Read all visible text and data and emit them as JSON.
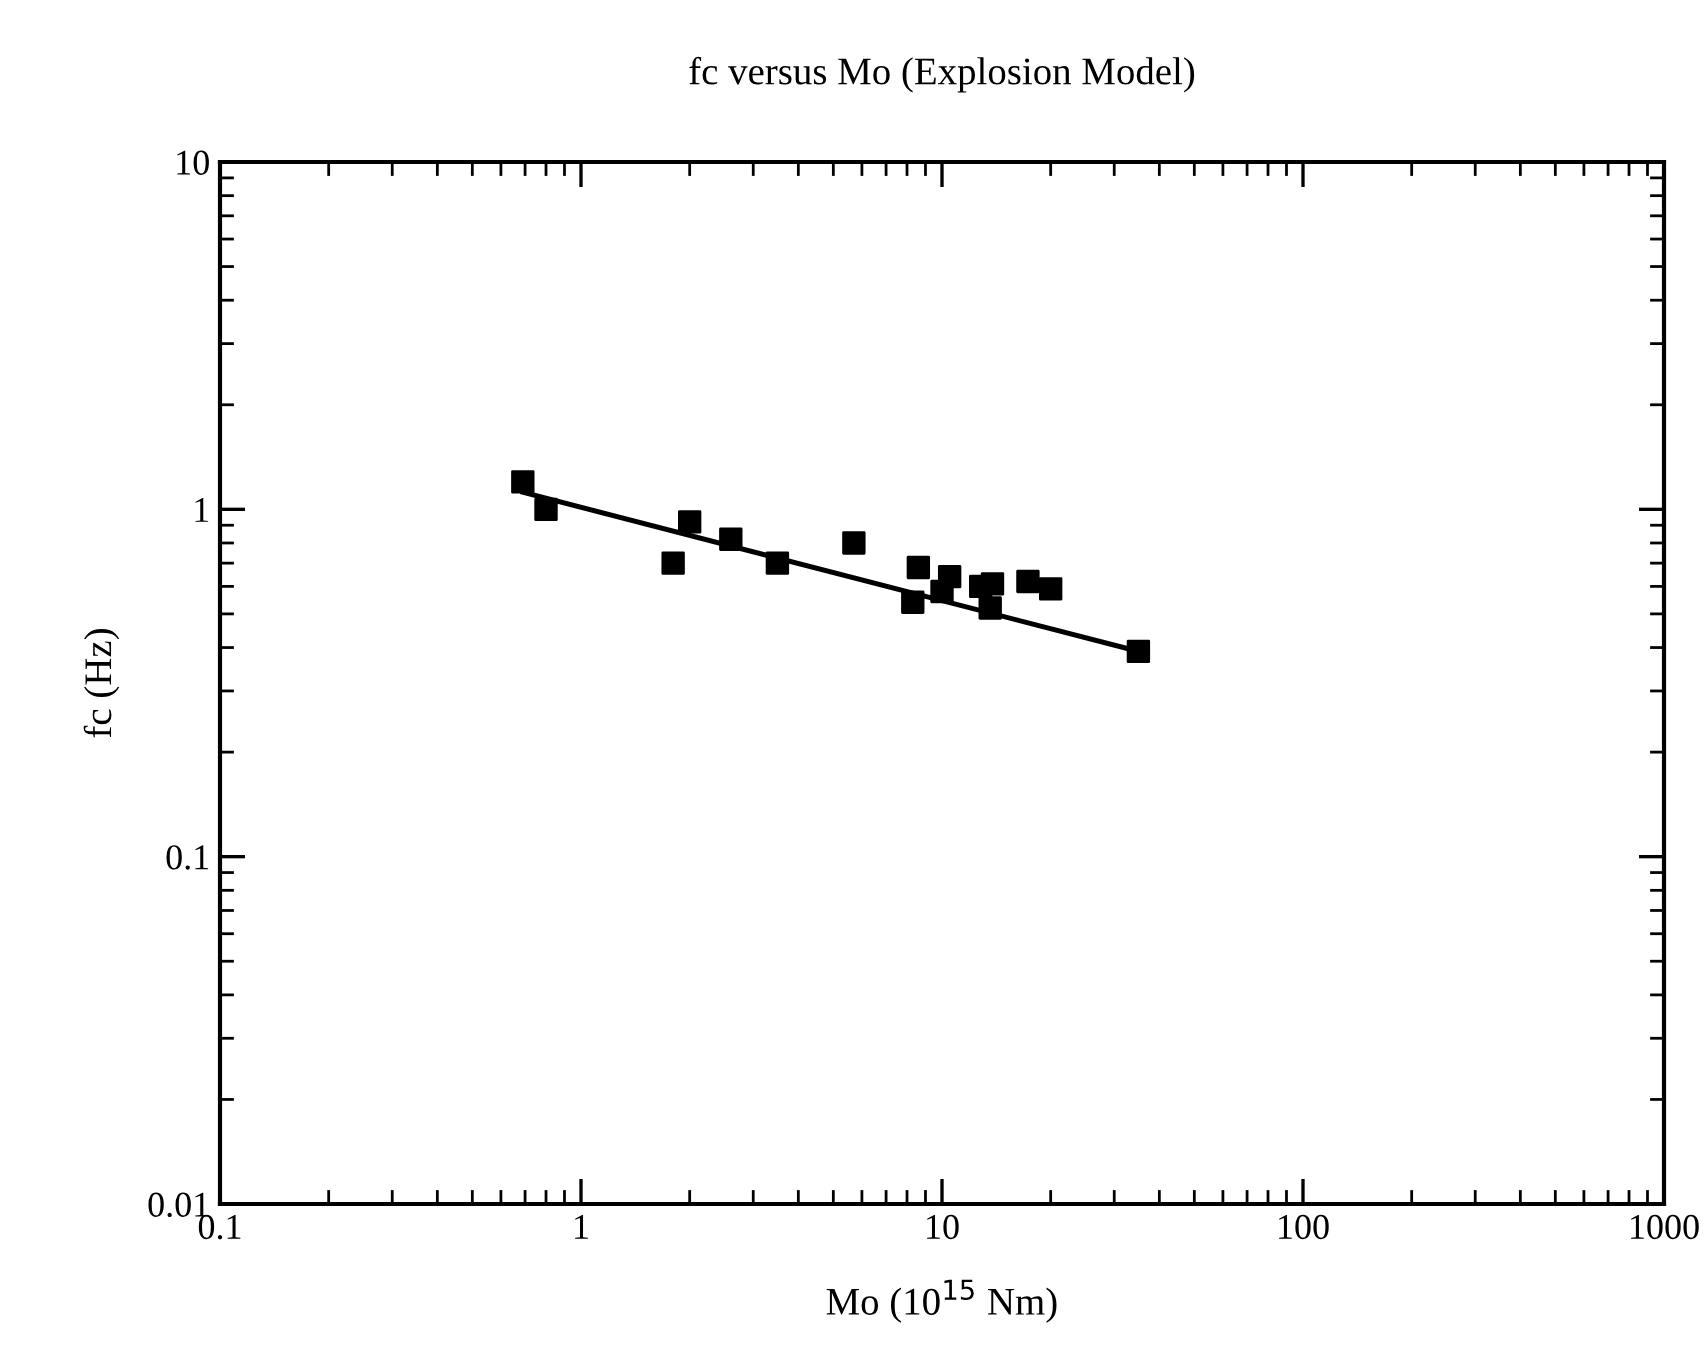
{
  "chart_data": {
    "type": "scatter",
    "title": "fc versus Mo (Explosion Model)",
    "xlabel": "Mo (10$^{15}$ Nm)",
    "ylabel": "fc (Hz)",
    "log": "xy",
    "xlim": [
      0.1,
      1000
    ],
    "ylim": [
      0.01,
      10
    ],
    "xticks": [
      0.1,
      1,
      10,
      100,
      1000
    ],
    "yticks": [
      0.01,
      0.1,
      1,
      10
    ],
    "grid": false,
    "legend": false,
    "series": [
      {
        "color": "#000000",
        "marker": "square",
        "x": [
          0.69,
          0.8,
          1.8,
          2.0,
          2.6,
          3.5,
          5.7,
          8.3,
          8.6,
          10,
          10.5,
          12.8,
          13.6,
          13.8,
          17.3,
          20,
          35
        ],
        "values": [
          1.2,
          1.0,
          0.7,
          0.92,
          0.82,
          0.7,
          0.8,
          0.54,
          0.68,
          0.58,
          0.64,
          0.6,
          0.52,
          0.61,
          0.62,
          0.59,
          0.39
        ]
      },
      {
        "type": "line",
        "marker": "none",
        "color": "#000000",
        "x": [
          0.69,
          35
        ],
        "values": [
          1.12,
          0.39
        ]
      }
    ]
  }
}
